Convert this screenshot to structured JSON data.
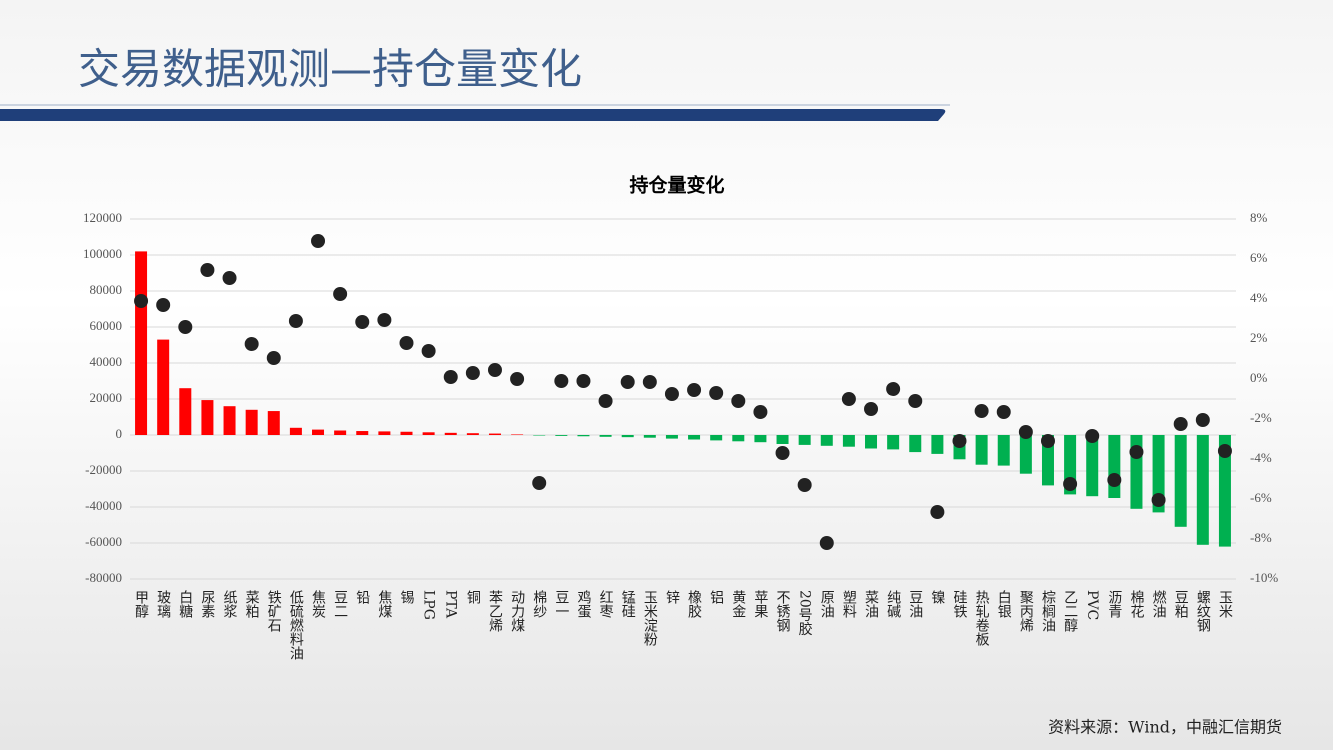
{
  "header": {
    "title": "交易数据观测—持仓量变化"
  },
  "chart_data": {
    "type": "bar",
    "title": "持仓量变化",
    "categories": [
      "甲醇",
      "玻璃",
      "白糖",
      "尿素",
      "纸浆",
      "菜粕",
      "铁矿石",
      "低硫燃料油",
      "焦炭",
      "豆二",
      "铅",
      "焦煤",
      "锡",
      "LPG",
      "PTA",
      "铜",
      "苯乙烯",
      "动力煤",
      "棉纱",
      "豆一",
      "鸡蛋",
      "红枣",
      "锰硅",
      "玉米淀粉",
      "锌",
      "橡胶",
      "铝",
      "黄金",
      "苹果",
      "不锈钢",
      "20号胶",
      "原油",
      "塑料",
      "菜油",
      "纯碱",
      "豆油",
      "镍",
      "硅铁",
      "热轧卷板",
      "白银",
      "聚丙烯",
      "棕榈油",
      "乙二醇",
      "PVC",
      "沥青",
      "棉花",
      "燃油",
      "豆粕",
      "螺纹钢",
      "玉米"
    ],
    "series": [
      {
        "type": "bar",
        "color": "#ff0000",
        "negative_color": "#00b050",
        "values": [
          102000,
          53000,
          26000,
          19400,
          16000,
          14000,
          13300,
          4000,
          3000,
          2500,
          2200,
          2000,
          1800,
          1500,
          1200,
          1000,
          800,
          300,
          -200,
          -500,
          -700,
          -1000,
          -1200,
          -1500,
          -2000,
          -2500,
          -3000,
          -3500,
          -4000,
          -5000,
          -5500,
          -6000,
          -6500,
          -7500,
          -8000,
          -9500,
          -10500,
          -13500,
          -16500,
          -17000,
          -21500,
          -28000,
          -33000,
          -34000,
          -35000,
          -41000,
          -43000,
          -51000,
          -61000,
          -62000
        ]
      },
      {
        "type": "scatter",
        "axis": "y2",
        "color": "#222222",
        "values": [
          3.9,
          3.7,
          2.6,
          5.45,
          5.05,
          1.75,
          1.05,
          2.9,
          6.9,
          4.25,
          2.85,
          2.95,
          1.8,
          1.4,
          0.1,
          0.3,
          0.45,
          0,
          -5.2,
          -0.1,
          -0.1,
          -1.1,
          -0.15,
          -0.15,
          -0.75,
          -0.55,
          -0.7,
          -1.1,
          -1.65,
          -3.7,
          -5.3,
          -8.2,
          -1,
          -1.5,
          -0.5,
          -1.1,
          -6.65,
          -3.1,
          -1.6,
          -1.65,
          -2.65,
          -3.1,
          -5.25,
          -2.85,
          -5.05,
          -3.65,
          -6.05,
          -2.25,
          -2.05,
          -3.6
        ]
      }
    ],
    "ylim": [
      -80000,
      120000
    ],
    "yticks": [
      -80000,
      -60000,
      -40000,
      -20000,
      0,
      20000,
      40000,
      60000,
      80000,
      100000,
      120000
    ],
    "y2lim": [
      -10,
      8
    ],
    "y2ticks": [
      {
        "value": -10,
        "label": "-10%"
      },
      {
        "value": -8,
        "label": "-8%"
      },
      {
        "value": -6,
        "label": "-6%"
      },
      {
        "value": -4,
        "label": "-4%"
      },
      {
        "value": -2,
        "label": "-2%"
      },
      {
        "value": 0,
        "label": "0%"
      },
      {
        "value": 2,
        "label": "2%"
      },
      {
        "value": 4,
        "label": "4%"
      },
      {
        "value": 6,
        "label": "6%"
      },
      {
        "value": 8,
        "label": "8%"
      }
    ],
    "grid": true
  },
  "footer": {
    "source": "资料来源：Wind，中融汇信期货"
  }
}
